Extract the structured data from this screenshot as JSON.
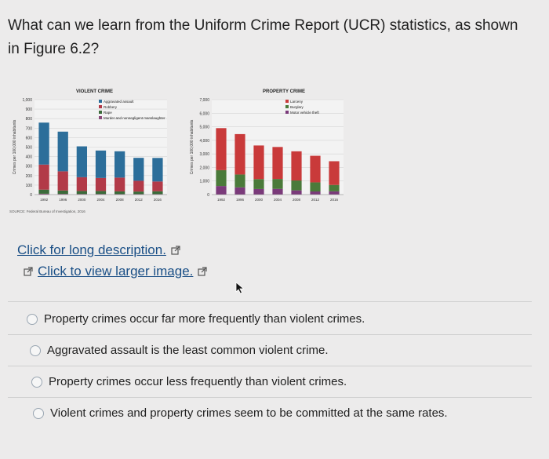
{
  "question": {
    "text": "What can we learn from the Uniform Crime Report (UCR) statistics, as shown in Figure 6.2?"
  },
  "links": {
    "long_description": "Click for long description.",
    "larger_image": "Click to view larger image."
  },
  "options": [
    "Property crimes occur far more frequently than violent crimes.",
    "Aggravated assault is the least common violent crime.",
    "Property crimes occur less frequently than violent crimes.",
    "Violent crimes and property crimes seem to be committed at the same rates."
  ],
  "colors": {
    "link": "#1a4f86",
    "violent_assault": "#2c6e9a",
    "violent_robbery": "#b23a48",
    "violent_rape": "#3b6b3a",
    "violent_murder": "#8a4a7a",
    "property_larceny": "#c93a3a",
    "property_burglary": "#4a7a3a",
    "property_motor": "#7a3a7a"
  },
  "chart_data": [
    {
      "type": "bar",
      "title": "VIOLENT CRIME",
      "ylabel": "Crimes per 100,000 inhabitants",
      "ylim": [
        0,
        1000
      ],
      "yticks": [
        "1,000",
        "900",
        "800",
        "700",
        "600",
        "500",
        "400",
        "300",
        "200",
        "100",
        "0"
      ],
      "categories": [
        "1992",
        "1996",
        "2000",
        "2004",
        "2008",
        "2012",
        "2016"
      ],
      "xtick_labels": [
        "1992",
        "1996",
        "2000",
        "2004",
        "2008",
        "2012",
        "2016"
      ],
      "legend": [
        "Aggravated assault",
        "Robbery",
        "Rape",
        "Murder and nonnegligent manslaughter"
      ],
      "series": [
        {
          "name": "Aggravated assault",
          "values": [
            442,
            418,
            325,
            289,
            277,
            242,
            248
          ]
        },
        {
          "name": "Robbery",
          "values": [
            264,
            202,
            145,
            137,
            145,
            113,
            103
          ]
        },
        {
          "name": "Rape",
          "values": [
            43,
            36,
            32,
            32,
            29,
            27,
            30
          ]
        },
        {
          "name": "Murder and nonnegligent manslaughter",
          "values": [
            9,
            7,
            6,
            6,
            5,
            5,
            5
          ]
        }
      ],
      "source": "SOURCE: Federal Bureau of Investigation, 2016"
    },
    {
      "type": "bar",
      "title": "PROPERTY CRIME",
      "ylabel": "Crimes per 100,000 inhabitants",
      "ylim": [
        0,
        7000
      ],
      "yticks": [
        "7,000",
        "6,000",
        "5,000",
        "4,000",
        "3,000",
        "2,000",
        "1,000",
        "0"
      ],
      "categories": [
        "1992",
        "1996",
        "2000",
        "2004",
        "2008",
        "2012",
        "2016"
      ],
      "xtick_labels": [
        "1992",
        "1996",
        "2000",
        "2004",
        "2008",
        "2012",
        "2016"
      ],
      "legend": [
        "Larceny",
        "Burglary",
        "Motor vehicle theft"
      ],
      "series": [
        {
          "name": "Larceny",
          "values": [
            3100,
            2980,
            2480,
            2360,
            2150,
            1960,
            1750
          ]
        },
        {
          "name": "Burglary",
          "values": [
            1170,
            950,
            730,
            730,
            730,
            670,
            470
          ]
        },
        {
          "name": "Motor vehicle theft",
          "values": [
            630,
            530,
            410,
            420,
            310,
            230,
            240
          ]
        }
      ]
    }
  ]
}
